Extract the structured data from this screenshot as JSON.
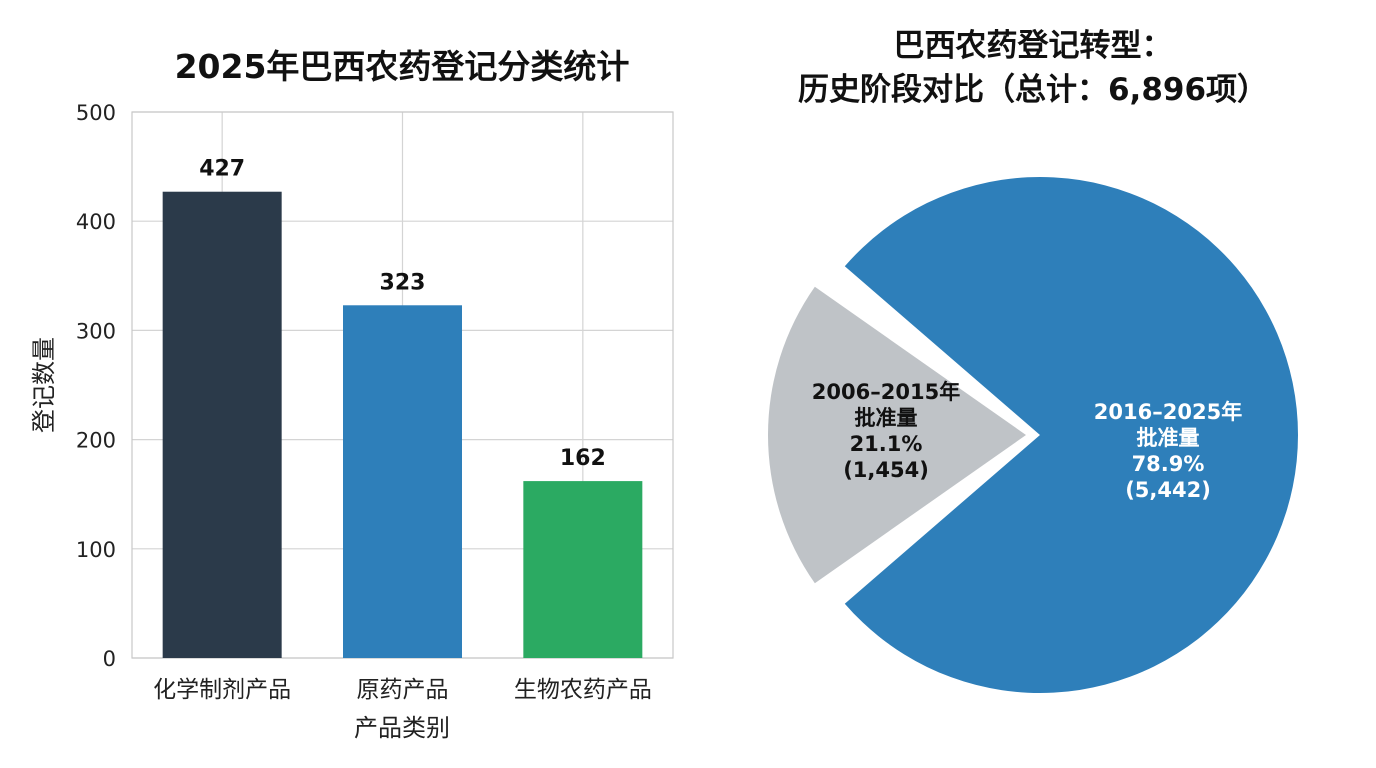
{
  "chart_data": [
    {
      "type": "bar",
      "title": "2025年巴西农药登记分类统计",
      "xlabel": "产品类别",
      "ylabel": "登记数量",
      "categories": [
        "化学制剂产品",
        "原药产品",
        "生物农药产品"
      ],
      "values": [
        427,
        323,
        162
      ],
      "value_labels": [
        "427",
        "323",
        "162"
      ],
      "colors": [
        "#2b3a4a",
        "#2e7fba",
        "#2baa62"
      ],
      "ylim": [
        0,
        500
      ],
      "yticks": [
        "0",
        "100",
        "200",
        "300",
        "400",
        "500"
      ],
      "grid": true,
      "legend": "none"
    },
    {
      "type": "pie",
      "title_lines": [
        "巴西农药登记转型：",
        "历史阶段对比（总计：6,896项）"
      ],
      "slices": [
        {
          "label_lines": [
            "2016–2025年",
            "批准量",
            "78.9%",
            "(5,442)"
          ],
          "value": 5442,
          "percent": 78.9,
          "color": "#2e7fba",
          "exploded": false
        },
        {
          "label_lines": [
            "2006–2015年",
            "批准量",
            "21.1%",
            "(1,454)"
          ],
          "value": 1454,
          "percent": 21.1,
          "color": "#bfc3c7",
          "exploded": true
        }
      ],
      "legend": "none"
    }
  ]
}
